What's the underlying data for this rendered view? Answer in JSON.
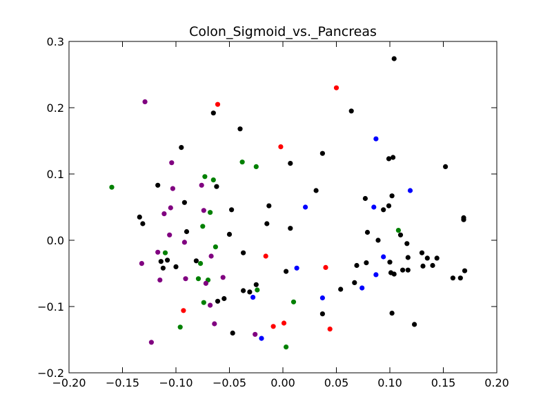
{
  "chart_data": {
    "type": "scatter",
    "title": "Colon_Sigmoid_vs._Pancreas",
    "xlabel": "",
    "ylabel": "",
    "xlim": [
      -0.2,
      0.2
    ],
    "ylim": [
      -0.2,
      0.3
    ],
    "x_ticks": [
      "−0.20",
      "−0.15",
      "−0.10",
      "−0.05",
      "0.00",
      "0.05",
      "0.10",
      "0.15",
      "0.20"
    ],
    "y_ticks": [
      "−0.2",
      "−0.1",
      "0.0",
      "0.1",
      "0.2",
      "0.3"
    ],
    "grid": false,
    "colors": {
      "black": "#000000",
      "red": "#ff0000",
      "blue": "#0000ff",
      "green": "#008000",
      "purple": "#800080"
    },
    "series": [
      {
        "color": "black",
        "points": [
          [
            -0.065,
            0.192
          ],
          [
            -0.04,
            0.168
          ],
          [
            -0.095,
            0.14
          ],
          [
            0.037,
            0.131
          ],
          [
            0.007,
            0.116
          ],
          [
            -0.117,
            0.083
          ],
          [
            -0.062,
            0.081
          ],
          [
            0.031,
            0.075
          ],
          [
            -0.092,
            0.057
          ],
          [
            -0.048,
            0.046
          ],
          [
            -0.134,
            0.035
          ],
          [
            -0.131,
            0.025
          ],
          [
            -0.013,
            0.052
          ],
          [
            -0.015,
            0.025
          ],
          [
            -0.09,
            0.013
          ],
          [
            0.007,
            0.018
          ],
          [
            -0.05,
            0.009
          ],
          [
            -0.037,
            -0.019
          ],
          [
            -0.081,
            -0.031
          ],
          [
            -0.114,
            -0.032
          ],
          [
            -0.108,
            -0.03
          ],
          [
            -0.112,
            -0.042
          ],
          [
            -0.1,
            -0.04
          ],
          [
            0.003,
            -0.047
          ],
          [
            -0.025,
            -0.067
          ],
          [
            -0.037,
            -0.076
          ],
          [
            -0.031,
            -0.078
          ],
          [
            -0.055,
            -0.088
          ],
          [
            -0.061,
            -0.092
          ],
          [
            0.037,
            -0.111
          ],
          [
            -0.047,
            -0.14
          ],
          [
            0.064,
            0.195
          ],
          [
            0.104,
            0.274
          ],
          [
            0.099,
            0.123
          ],
          [
            0.103,
            0.125
          ],
          [
            0.152,
            0.111
          ],
          [
            0.102,
            0.067
          ],
          [
            0.077,
            0.063
          ],
          [
            0.099,
            0.052
          ],
          [
            0.094,
            0.046
          ],
          [
            0.079,
            0.012
          ],
          [
            0.11,
            0.008
          ],
          [
            0.089,
            0.0
          ],
          [
            0.116,
            -0.005
          ],
          [
            0.13,
            -0.019
          ],
          [
            0.169,
            0.034
          ],
          [
            0.169,
            0.031
          ],
          [
            0.117,
            -0.026
          ],
          [
            0.135,
            -0.027
          ],
          [
            0.144,
            -0.027
          ],
          [
            0.1,
            -0.033
          ],
          [
            0.078,
            -0.034
          ],
          [
            0.069,
            -0.038
          ],
          [
            0.14,
            -0.038
          ],
          [
            0.131,
            -0.039
          ],
          [
            0.112,
            -0.045
          ],
          [
            0.117,
            -0.045
          ],
          [
            0.101,
            -0.049
          ],
          [
            0.104,
            -0.051
          ],
          [
            0.17,
            -0.046
          ],
          [
            0.159,
            -0.057
          ],
          [
            0.166,
            -0.057
          ],
          [
            0.067,
            -0.064
          ],
          [
            0.054,
            -0.074
          ],
          [
            0.102,
            -0.11
          ],
          [
            0.123,
            -0.127
          ]
        ]
      },
      {
        "color": "red",
        "points": [
          [
            -0.061,
            0.205
          ],
          [
            0.05,
            0.23
          ],
          [
            -0.002,
            0.141
          ],
          [
            -0.016,
            -0.024
          ],
          [
            0.04,
            -0.041
          ],
          [
            -0.093,
            -0.106
          ],
          [
            0.001,
            -0.125
          ],
          [
            -0.009,
            -0.13
          ],
          [
            0.044,
            -0.134
          ]
        ]
      },
      {
        "color": "blue",
        "points": [
          [
            0.087,
            0.153
          ],
          [
            0.119,
            0.075
          ],
          [
            0.021,
            0.05
          ],
          [
            0.085,
            0.05
          ],
          [
            0.094,
            -0.025
          ],
          [
            0.013,
            -0.042
          ],
          [
            0.087,
            -0.052
          ],
          [
            0.074,
            -0.072
          ],
          [
            -0.028,
            -0.086
          ],
          [
            0.037,
            -0.087
          ],
          [
            -0.02,
            -0.148
          ]
        ]
      },
      {
        "color": "green",
        "points": [
          [
            -0.16,
            0.08
          ],
          [
            -0.038,
            0.118
          ],
          [
            -0.025,
            0.111
          ],
          [
            -0.073,
            0.096
          ],
          [
            -0.065,
            0.091
          ],
          [
            -0.068,
            0.042
          ],
          [
            -0.075,
            0.021
          ],
          [
            -0.063,
            -0.01
          ],
          [
            0.108,
            0.015
          ],
          [
            -0.11,
            -0.019
          ],
          [
            -0.077,
            -0.035
          ],
          [
            -0.079,
            -0.058
          ],
          [
            -0.07,
            -0.06
          ],
          [
            -0.024,
            -0.075
          ],
          [
            -0.074,
            -0.094
          ],
          [
            0.01,
            -0.093
          ],
          [
            -0.096,
            -0.131
          ],
          [
            0.003,
            -0.161
          ]
        ]
      },
      {
        "color": "purple",
        "points": [
          [
            -0.129,
            0.209
          ],
          [
            -0.104,
            0.117
          ],
          [
            -0.076,
            0.083
          ],
          [
            -0.103,
            0.078
          ],
          [
            -0.105,
            0.049
          ],
          [
            -0.074,
            0.045
          ],
          [
            -0.111,
            0.04
          ],
          [
            -0.106,
            0.008
          ],
          [
            -0.092,
            -0.003
          ],
          [
            -0.117,
            -0.018
          ],
          [
            -0.067,
            -0.024
          ],
          [
            -0.132,
            -0.035
          ],
          [
            -0.056,
            -0.056
          ],
          [
            -0.091,
            -0.058
          ],
          [
            -0.115,
            -0.06
          ],
          [
            -0.072,
            -0.065
          ],
          [
            -0.068,
            -0.098
          ],
          [
            -0.064,
            -0.126
          ],
          [
            -0.026,
            -0.142
          ],
          [
            -0.123,
            -0.154
          ]
        ]
      }
    ]
  }
}
